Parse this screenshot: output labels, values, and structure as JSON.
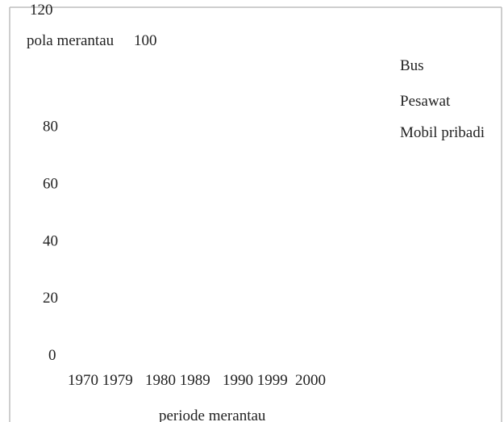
{
  "chart_data": {
    "type": "bar",
    "title": "",
    "ylabel": "pola merantau",
    "xlabel": "periode merantau",
    "ylim": [
      0,
      120
    ],
    "y_ticks": [
      "0",
      "20",
      "40",
      "60",
      "80",
      "100",
      "120"
    ],
    "categories": [
      "1970 1979",
      "1980 1989",
      "1990 1999",
      "2000"
    ],
    "series": [
      {
        "name": "Bus",
        "values": [
          null,
          null,
          null,
          null
        ]
      },
      {
        "name": "Pesawat",
        "values": [
          null,
          null,
          null,
          null
        ]
      },
      {
        "name": "Mobil pribadi",
        "values": [
          null,
          null,
          null,
          null
        ]
      }
    ],
    "grid": false,
    "legend_position": "right"
  }
}
